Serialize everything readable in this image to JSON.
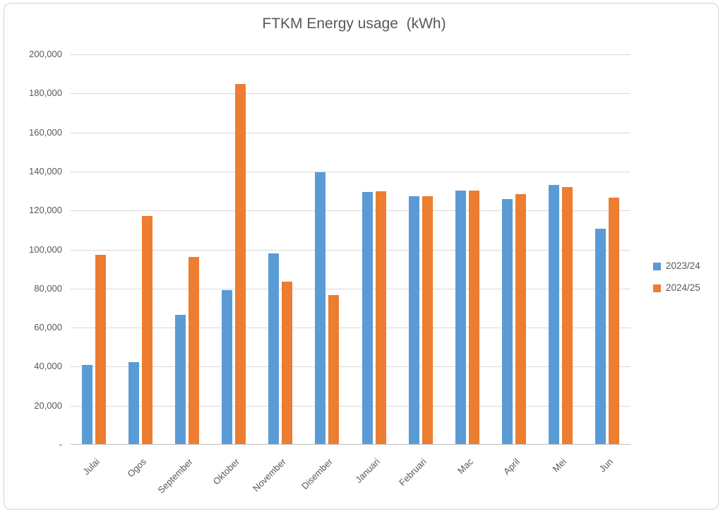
{
  "chart_data": {
    "type": "bar",
    "title": "FTKM Energy usage  (kWh)",
    "categories": [
      "Julai",
      "Ogos",
      "September",
      "Oktober",
      "November",
      "Disember",
      "Januari",
      "Februari",
      "Mac",
      "April",
      "Mei",
      "Jun"
    ],
    "series": [
      {
        "name": "2023/24",
        "color": "#5B9BD5",
        "values": [
          40500,
          42000,
          66200,
          79000,
          97800,
          139300,
          129300,
          126900,
          129700,
          125600,
          132600,
          110300
        ]
      },
      {
        "name": "2024/25",
        "color": "#ED7D31",
        "values": [
          96800,
          117000,
          95800,
          184400,
          83200,
          76300,
          129400,
          126900,
          129800,
          128000,
          131500,
          126300
        ]
      }
    ],
    "xlabel": "",
    "ylabel": "",
    "ylim": [
      0,
      200000
    ],
    "ytick_step": 20000,
    "ytick_labels": [
      "-",
      "20,000",
      "40,000",
      "60,000",
      "80,000",
      "100,000",
      "120,000",
      "140,000",
      "160,000",
      "180,000",
      "200,000"
    ],
    "grid": true,
    "legend_position": "right",
    "gridline_color": "#d9d9d9",
    "axis_text_color": "#595959"
  }
}
